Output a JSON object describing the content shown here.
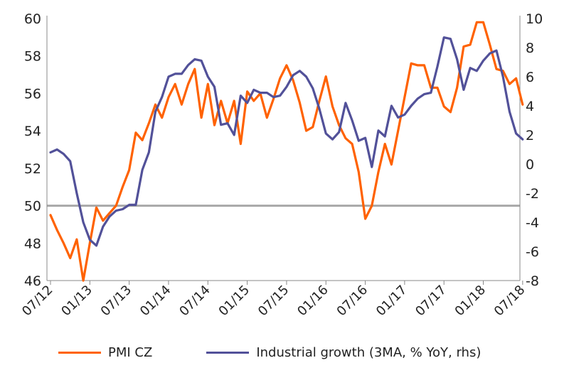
{
  "chart_data": {
    "type": "line",
    "x_ticks": [
      "07/12",
      "01/13",
      "07/13",
      "01/14",
      "07/14",
      "01/15",
      "07/15",
      "01/16",
      "07/16",
      "01/17",
      "07/17",
      "01/18",
      "07/18"
    ],
    "ylim_left": [
      46,
      60
    ],
    "ylim_right": [
      -8,
      10
    ],
    "y_ticks_left": [
      "46",
      "48",
      "50",
      "52",
      "54",
      "56",
      "58",
      "60"
    ],
    "y_ticks_right": [
      "-8",
      "-6",
      "-4",
      "-2",
      "0",
      "2",
      "4",
      "6",
      "8",
      "10"
    ],
    "reference_line": 50,
    "colors": {
      "pmi": "#FF6200",
      "industry": "#525199",
      "reference": "#A8A8A8",
      "axis": "#888888"
    },
    "series": [
      {
        "name": "PMI CZ",
        "axis": "left",
        "color": "#FF6200",
        "x": [
          "2012-07",
          "2012-08",
          "2012-09",
          "2012-10",
          "2012-11",
          "2012-12",
          "2013-01",
          "2013-02",
          "2013-03",
          "2013-04",
          "2013-05",
          "2013-06",
          "2013-07",
          "2013-08",
          "2013-09",
          "2013-10",
          "2013-11",
          "2013-12",
          "2014-01",
          "2014-02",
          "2014-03",
          "2014-04",
          "2014-05",
          "2014-06",
          "2014-07",
          "2014-08",
          "2014-09",
          "2014-10",
          "2014-11",
          "2014-12",
          "2015-01",
          "2015-02",
          "2015-03",
          "2015-04",
          "2015-05",
          "2015-06",
          "2015-07",
          "2015-08",
          "2015-09",
          "2015-10",
          "2015-11",
          "2015-12",
          "2016-01",
          "2016-02",
          "2016-03",
          "2016-04",
          "2016-05",
          "2016-06",
          "2016-07",
          "2016-08",
          "2016-09",
          "2016-10",
          "2016-11",
          "2016-12",
          "2017-01",
          "2017-02",
          "2017-03",
          "2017-04",
          "2017-05",
          "2017-06",
          "2017-07",
          "2017-08",
          "2017-09",
          "2017-10",
          "2017-11",
          "2017-12",
          "2018-01",
          "2018-02",
          "2018-03",
          "2018-04",
          "2018-05",
          "2018-06",
          "2018-07"
        ],
        "y": [
          49.5,
          48.7,
          48.0,
          47.2,
          48.2,
          46.0,
          48.0,
          49.9,
          49.2,
          49.6,
          50.0,
          51.0,
          51.9,
          53.9,
          53.5,
          54.4,
          55.4,
          54.7,
          55.8,
          56.5,
          55.4,
          56.5,
          57.3,
          54.7,
          56.5,
          54.3,
          55.6,
          54.4,
          55.6,
          53.3,
          56.1,
          55.6,
          56.0,
          54.7,
          55.7,
          56.8,
          57.5,
          56.7,
          55.5,
          54.0,
          54.2,
          55.6,
          56.9,
          55.3,
          54.3,
          53.6,
          53.3,
          51.8,
          49.3,
          50.0,
          51.8,
          53.3,
          52.2,
          54.0,
          55.8,
          57.6,
          57.5,
          57.5,
          56.3,
          56.3,
          55.3,
          55.0,
          56.3,
          58.5,
          58.6,
          59.8,
          59.8,
          58.6,
          57.3,
          57.2,
          56.5,
          56.8,
          55.4
        ]
      },
      {
        "name": "Industrial growth (3MA, % YoY, rhs)",
        "axis": "right",
        "color": "#525199",
        "x": [
          "2012-07",
          "2012-08",
          "2012-09",
          "2012-10",
          "2012-11",
          "2012-12",
          "2013-01",
          "2013-02",
          "2013-03",
          "2013-04",
          "2013-05",
          "2013-06",
          "2013-07",
          "2013-08",
          "2013-09",
          "2013-10",
          "2013-11",
          "2013-12",
          "2014-01",
          "2014-02",
          "2014-03",
          "2014-04",
          "2014-05",
          "2014-06",
          "2014-07",
          "2014-08",
          "2014-09",
          "2014-10",
          "2014-11",
          "2014-12",
          "2015-01",
          "2015-02",
          "2015-03",
          "2015-04",
          "2015-05",
          "2015-06",
          "2015-07",
          "2015-08",
          "2015-09",
          "2015-10",
          "2015-11",
          "2015-12",
          "2016-01",
          "2016-02",
          "2016-03",
          "2016-04",
          "2016-05",
          "2016-06",
          "2016-07",
          "2016-08",
          "2016-09",
          "2016-10",
          "2016-11",
          "2016-12",
          "2017-01",
          "2017-02",
          "2017-03",
          "2017-04",
          "2017-05",
          "2017-06",
          "2017-07",
          "2017-08",
          "2017-09",
          "2017-10",
          "2017-11",
          "2017-12",
          "2018-01",
          "2018-02",
          "2018-03",
          "2018-04",
          "2018-05",
          "2018-06",
          "2018-07"
        ],
        "y": [
          0.8,
          1.0,
          0.7,
          0.2,
          -2.0,
          -4.0,
          -5.2,
          -5.6,
          -4.3,
          -3.6,
          -3.2,
          -3.1,
          -2.8,
          -2.8,
          -0.4,
          0.8,
          3.6,
          4.6,
          6.0,
          6.2,
          6.2,
          6.8,
          7.2,
          7.1,
          6.0,
          5.3,
          2.7,
          2.8,
          2.0,
          4.7,
          4.2,
          5.1,
          4.9,
          4.9,
          4.6,
          4.7,
          5.3,
          6.1,
          6.4,
          6.0,
          5.2,
          3.8,
          2.1,
          1.7,
          2.2,
          4.2,
          3.0,
          1.6,
          1.8,
          -0.2,
          2.3,
          1.9,
          4.0,
          3.2,
          3.4,
          4.0,
          4.5,
          4.8,
          4.9,
          6.7,
          8.7,
          8.6,
          7.2,
          5.1,
          6.6,
          6.4,
          7.1,
          7.6,
          7.8,
          6.0,
          3.6,
          2.1,
          1.7
        ]
      }
    ],
    "legend_position": "bottom",
    "grid": false
  }
}
